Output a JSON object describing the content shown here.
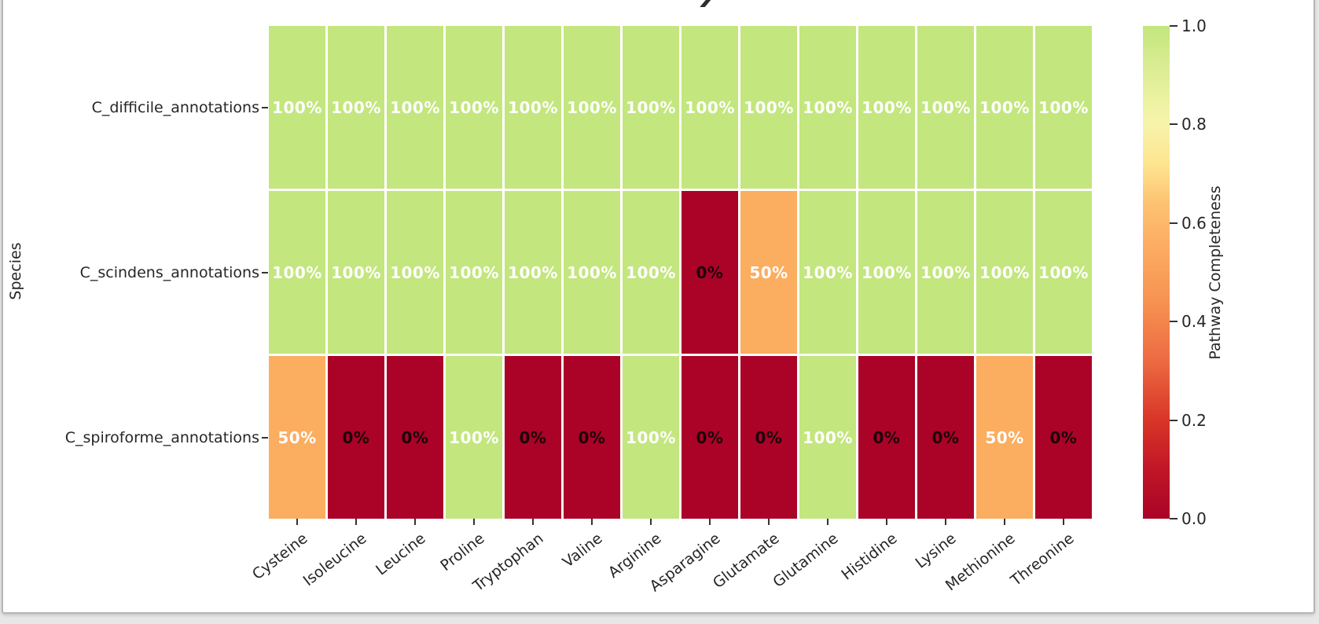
{
  "frame": {
    "background": "#e7e7e7",
    "card_border": "#b6b6b6",
    "card_background": "#ffffff"
  },
  "chart_data": {
    "type": "heatmap",
    "ylabel": "Species",
    "xlabel": "",
    "columns": [
      "Cysteine",
      "Isoleucine",
      "Leucine",
      "Proline",
      "Tryptophan",
      "Valine",
      "Arginine",
      "Asparagine",
      "Glutamate",
      "Glutamine",
      "Histidine",
      "Lysine",
      "Methionine",
      "Threonine"
    ],
    "rows": [
      "C_difficile_annotations",
      "C_scindens_annotations",
      "C_spiroforme_annotations"
    ],
    "values": [
      [
        1,
        1,
        1,
        1,
        1,
        1,
        1,
        1,
        1,
        1,
        1,
        1,
        1,
        1
      ],
      [
        1,
        1,
        1,
        1,
        1,
        1,
        1,
        0,
        0.5,
        1,
        1,
        1,
        1,
        1
      ],
      [
        0.5,
        0,
        0,
        1,
        0,
        0,
        1,
        0,
        0,
        1,
        0,
        0,
        0.5,
        0
      ]
    ],
    "cell_labels": [
      [
        "100%",
        "100%",
        "100%",
        "100%",
        "100%",
        "100%",
        "100%",
        "100%",
        "100%",
        "100%",
        "100%",
        "100%",
        "100%",
        "100%"
      ],
      [
        "100%",
        "100%",
        "100%",
        "100%",
        "100%",
        "100%",
        "100%",
        "0%",
        "50%",
        "100%",
        "100%",
        "100%",
        "100%",
        "100%"
      ],
      [
        "50%",
        "0%",
        "0%",
        "100%",
        "0%",
        "0%",
        "100%",
        "0%",
        "0%",
        "100%",
        "0%",
        "0%",
        "50%",
        "0%"
      ]
    ],
    "value_range": [
      0,
      1
    ],
    "grid_line_color": "#ffffff",
    "colormap": {
      "1": "#c3e67e",
      "0.5": "#fbad60",
      "0": "#aa0327"
    },
    "annotation_text_colors": {
      "light": "#ffffff",
      "dark": "#1c0309"
    },
    "colorbar": {
      "label": "Pathway Completeness",
      "ticks": [
        "1.0",
        "0.8",
        "0.6",
        "0.4",
        "0.2",
        "0.0"
      ],
      "gradient_stops": [
        [
          0,
          "#a90327"
        ],
        [
          10,
          "#c11627"
        ],
        [
          20,
          "#d93527"
        ],
        [
          32,
          "#ec6a42"
        ],
        [
          44,
          "#f79252"
        ],
        [
          56,
          "#fcae64"
        ],
        [
          64,
          "#fdc272"
        ],
        [
          72,
          "#fee590"
        ],
        [
          80,
          "#f7f3ab"
        ],
        [
          84,
          "#eef3a4"
        ],
        [
          92,
          "#d9ec92"
        ],
        [
          100,
          "#c3e67e"
        ]
      ]
    }
  }
}
